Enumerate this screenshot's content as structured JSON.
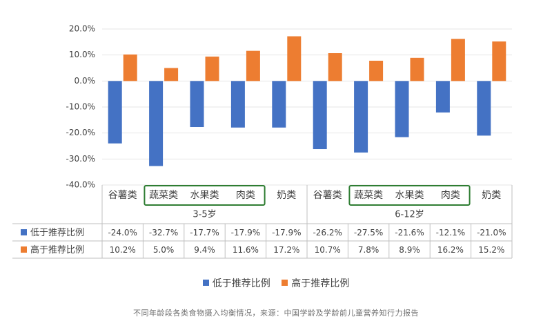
{
  "chart_data": {
    "type": "bar",
    "groups": [
      {
        "label": "3-5岁",
        "categories": [
          "谷薯类",
          "蔬菜类",
          "水果类",
          "肉类",
          "奶类"
        ]
      },
      {
        "label": "6-12岁",
        "categories": [
          "谷薯类",
          "蔬菜类",
          "水果类",
          "肉类",
          "奶类"
        ]
      }
    ],
    "series": [
      {
        "name": "低于推荐比例",
        "color": "#4472C4",
        "values": [
          -24.0,
          -32.7,
          -17.7,
          -17.9,
          -17.9,
          -26.2,
          -27.5,
          -21.6,
          -12.1,
          -21.0
        ],
        "labels": [
          "-24.0%",
          "-32.7%",
          "-17.7%",
          "-17.9%",
          "-17.9%",
          "-26.2%",
          "-27.5%",
          "-21.6%",
          "-12.1%",
          "-21.0%"
        ]
      },
      {
        "name": "高于推荐比例",
        "color": "#ED7D31",
        "values": [
          10.2,
          5.0,
          9.4,
          11.6,
          17.2,
          10.7,
          7.8,
          8.9,
          16.2,
          15.2
        ],
        "labels": [
          "10.2%",
          "5.0%",
          "9.4%",
          "11.6%",
          "17.2%",
          "10.7%",
          "7.8%",
          "8.9%",
          "16.2%",
          "15.2%"
        ]
      }
    ],
    "ylim": [
      -40,
      20
    ],
    "yticks": [
      20,
      10,
      0,
      -10,
      -20,
      -30,
      -40
    ],
    "ytick_labels": [
      "20.0%",
      "10.0%",
      "0.0%",
      "-10.0%",
      "-20.0%",
      "-30.0%",
      "-40.0%"
    ],
    "grid": true,
    "highlighted_categories": [
      "蔬菜类",
      "水果类",
      "肉类"
    ],
    "highlight_color": "#2E7D32",
    "legend_position": "bottom"
  },
  "legend": {
    "below_label": "低于推荐比例",
    "above_label": "高于推荐比例"
  },
  "caption": "不同年龄段各类食物摄入均衡情况，来源：中国学龄及学龄前儿童营养知行力报告"
}
